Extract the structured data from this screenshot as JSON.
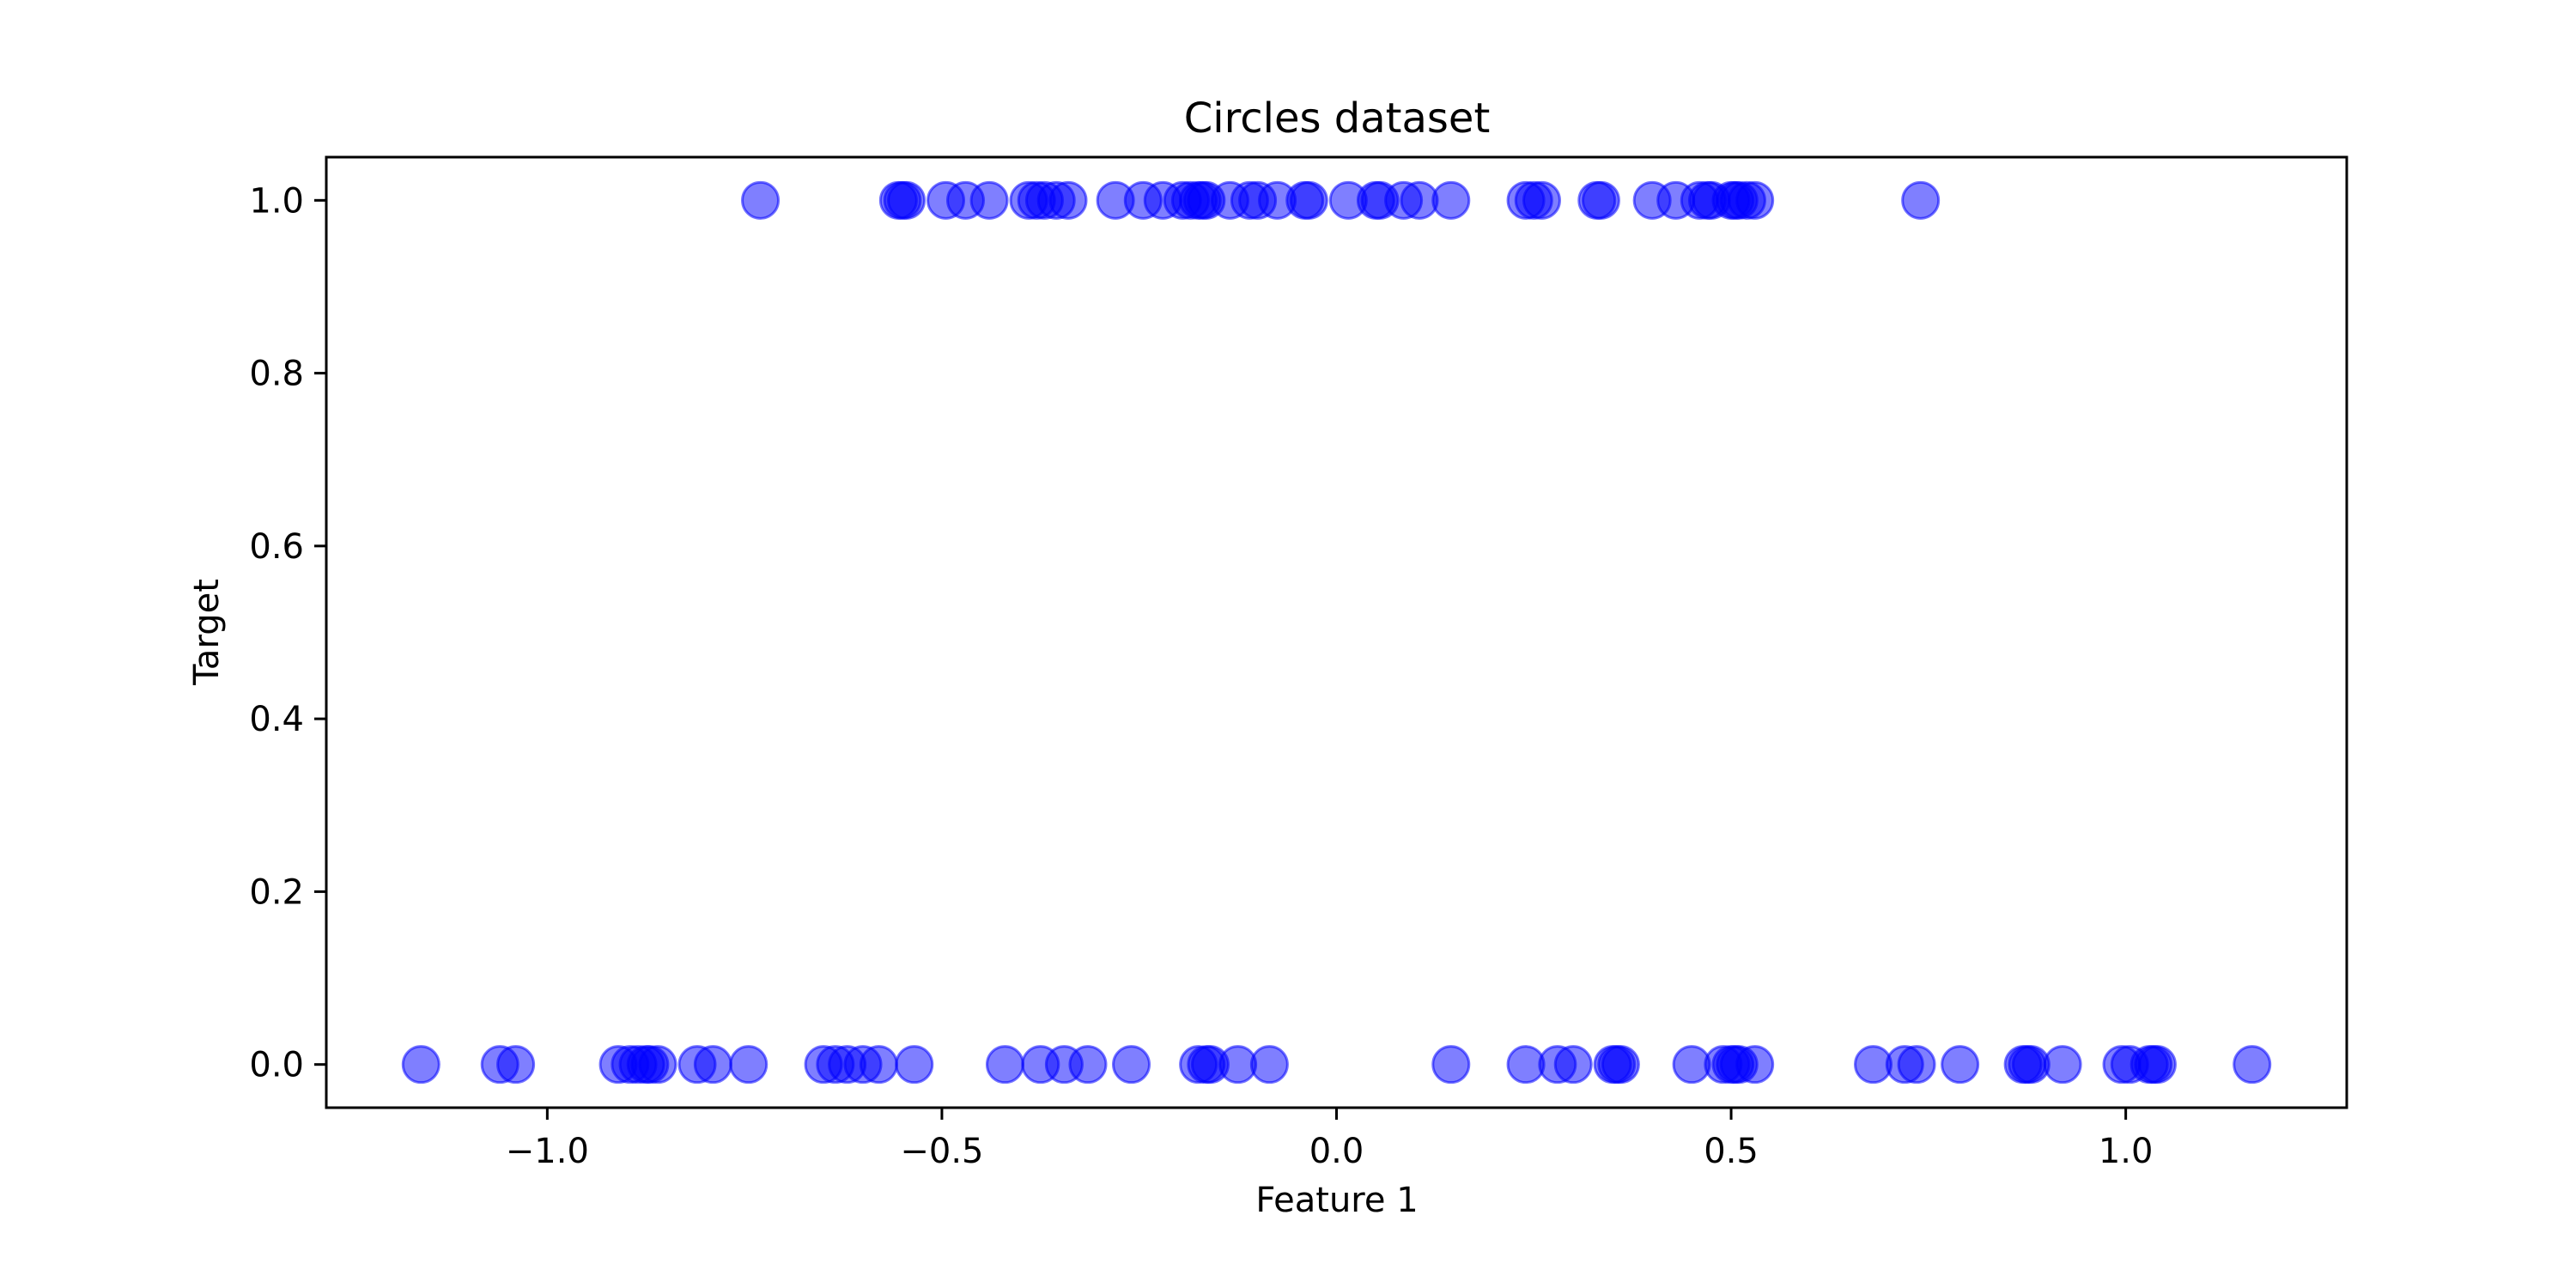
{
  "chart_data": {
    "type": "scatter",
    "title": "Circles dataset",
    "xlabel": "Feature 1",
    "ylabel": "Target",
    "xlim": [
      -1.28,
      1.28
    ],
    "ylim": [
      -0.05,
      1.05
    ],
    "x_ticks": [
      -1.0,
      -0.5,
      0.0,
      0.5,
      1.0
    ],
    "x_tick_labels": [
      "−1.0",
      "−0.5",
      "0.0",
      "0.5",
      "1.0"
    ],
    "y_ticks": [
      0.0,
      0.2,
      0.4,
      0.6,
      0.8,
      1.0
    ],
    "y_tick_labels": [
      "0.0",
      "0.2",
      "0.4",
      "0.6",
      "0.8",
      "1.0"
    ],
    "grid": false,
    "marker_color": "#0000ff",
    "marker_opacity": 0.5,
    "series": [
      {
        "y": 1,
        "x": [
          -0.73,
          -0.555,
          -0.55,
          -0.545,
          -0.495,
          -0.47,
          -0.44,
          -0.39,
          -0.38,
          -0.37,
          -0.355,
          -0.34,
          -0.28,
          -0.245,
          -0.22,
          -0.195,
          -0.185,
          -0.175,
          -0.17,
          -0.165,
          -0.135,
          -0.11,
          -0.1,
          -0.075,
          -0.04,
          -0.035,
          0.015,
          0.05,
          0.055,
          0.085,
          0.105,
          0.145,
          0.24,
          0.25,
          0.26,
          0.33,
          0.335,
          0.4,
          0.43,
          0.46,
          0.47,
          0.475,
          0.5,
          0.505,
          0.51,
          0.52,
          0.53,
          0.74
        ]
      },
      {
        "y": 0,
        "x": [
          -1.16,
          -1.06,
          -1.04,
          -0.91,
          -0.895,
          -0.885,
          -0.875,
          -0.87,
          -0.86,
          -0.81,
          -0.79,
          -0.745,
          -0.65,
          -0.635,
          -0.62,
          -0.6,
          -0.58,
          -0.535,
          -0.42,
          -0.375,
          -0.345,
          -0.315,
          -0.26,
          -0.175,
          -0.165,
          -0.16,
          -0.125,
          -0.085,
          0.145,
          0.24,
          0.28,
          0.3,
          0.35,
          0.355,
          0.36,
          0.45,
          0.49,
          0.5,
          0.505,
          0.51,
          0.53,
          0.68,
          0.72,
          0.735,
          0.79,
          0.87,
          0.875,
          0.88,
          0.92,
          0.995,
          1.005,
          1.03,
          1.035,
          1.04,
          1.16
        ]
      }
    ]
  }
}
